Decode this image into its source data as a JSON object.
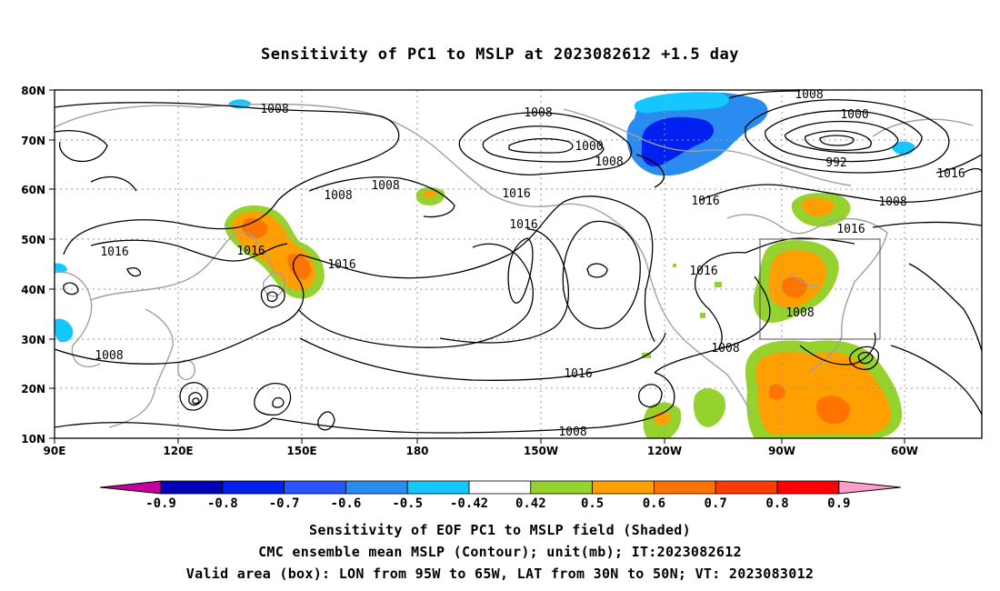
{
  "title": "Sensitivity of PC1 to MSLP at 2023082612 +1.5 day",
  "map": {
    "lat_labels": [
      "80N",
      "70N",
      "60N",
      "50N",
      "40N",
      "30N",
      "20N",
      "10N"
    ],
    "lon_labels": [
      "90E",
      "120E",
      "150E",
      "180",
      "150W",
      "120W",
      "90W",
      "60W"
    ],
    "contour_labels": [
      "1008",
      "1008",
      "1008",
      "1008",
      "1000",
      "1008",
      "1000",
      "992",
      "1008",
      "1008",
      "1016",
      "1016",
      "1016",
      "1016",
      "1016",
      "1016",
      "1016",
      "1008",
      "1016",
      "1008",
      "1008",
      "1016",
      "1008"
    ],
    "valid_box": {
      "lon_from": "95W",
      "lon_to": "65W",
      "lat_from": "30N",
      "lat_to": "50N"
    }
  },
  "colorbar": {
    "labels": [
      "-0.9",
      "-0.8",
      "-0.7",
      "-0.6",
      "-0.5",
      "-0.42",
      "0.42",
      "0.5",
      "0.6",
      "0.7",
      "0.8",
      "0.9"
    ],
    "colors": [
      "#0000b4",
      "#0020f0",
      "#2855ff",
      "#2a8cf0",
      "#14c8ff",
      "#ffffff",
      "#96d22d",
      "#ff9f00",
      "#ff7300",
      "#ff3c00",
      "#ff0000"
    ],
    "low_end_color": "#c8009b",
    "high_end_color": "#ff9ec8"
  },
  "caption": {
    "line1": "Sensitivity of EOF PC1 to MSLP field (Shaded)",
    "line2": "CMC ensemble mean MSLP (Contour); unit(mb); IT:2023082612",
    "line3": "Valid area (box): LON from 95W to 65W, LAT from 30N to 50N; VT: 2023083012"
  }
}
